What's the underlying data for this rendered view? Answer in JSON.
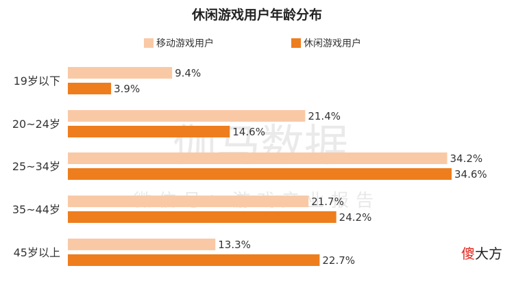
{
  "chart_data": {
    "type": "bar",
    "orientation": "horizontal",
    "title": "休闲游戏用户年龄分布",
    "categories": [
      "19岁以下",
      "20~24岁",
      "25~34岁",
      "35~44岁",
      "45岁以上"
    ],
    "series": [
      {
        "name": "移动游戏用户",
        "color": "#f9c9a6",
        "values": [
          9.4,
          21.4,
          34.2,
          21.7,
          13.3
        ],
        "labels": [
          "9.4%",
          "21.4%",
          "34.2%",
          "21.7%",
          "13.3%"
        ]
      },
      {
        "name": "休闲游戏用户",
        "color": "#ee7d1d",
        "values": [
          3.9,
          14.6,
          34.6,
          24.2,
          22.7
        ],
        "labels": [
          "3.9%",
          "14.6%",
          "34.6%",
          "24.2%",
          "22.7%"
        ]
      }
    ],
    "xlim": [
      0,
      34.6
    ],
    "legend_position": "top",
    "grid": false
  },
  "watermark": {
    "main": "伽马数据",
    "sub": "微信号：游戏产业报告"
  },
  "corner_logo": {
    "accent": "傻",
    "rest": "大方"
  }
}
